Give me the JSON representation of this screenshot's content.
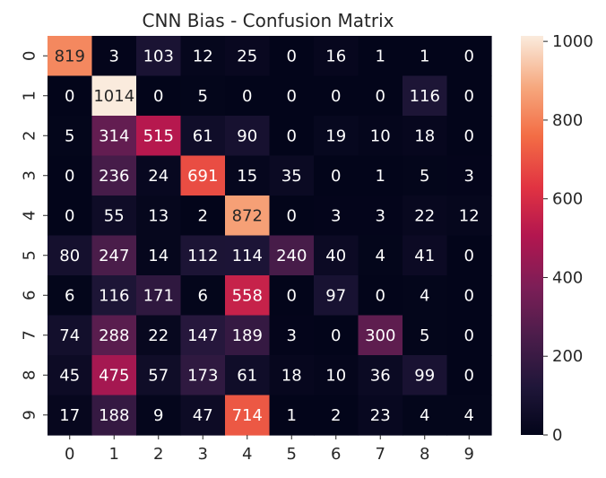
{
  "chart_data": {
    "type": "heatmap",
    "title": "CNN Bias - Confusion Matrix",
    "xlabel": "",
    "ylabel": "",
    "x_categories": [
      "0",
      "1",
      "2",
      "3",
      "4",
      "5",
      "6",
      "7",
      "8",
      "9"
    ],
    "y_categories": [
      "0",
      "1",
      "2",
      "3",
      "4",
      "5",
      "6",
      "7",
      "8",
      "9"
    ],
    "values": [
      [
        819,
        3,
        103,
        12,
        25,
        0,
        16,
        1,
        1,
        0
      ],
      [
        0,
        1014,
        0,
        5,
        0,
        0,
        0,
        0,
        116,
        0
      ],
      [
        5,
        314,
        515,
        61,
        90,
        0,
        19,
        10,
        18,
        0
      ],
      [
        0,
        236,
        24,
        691,
        15,
        35,
        0,
        1,
        5,
        3
      ],
      [
        0,
        55,
        13,
        2,
        872,
        0,
        3,
        3,
        22,
        12
      ],
      [
        80,
        247,
        14,
        112,
        114,
        240,
        40,
        4,
        41,
        0
      ],
      [
        6,
        116,
        171,
        6,
        558,
        0,
        97,
        0,
        4,
        0
      ],
      [
        74,
        288,
        22,
        147,
        189,
        3,
        0,
        300,
        5,
        0
      ],
      [
        45,
        475,
        57,
        173,
        61,
        18,
        10,
        36,
        99,
        0
      ],
      [
        17,
        188,
        9,
        47,
        714,
        1,
        2,
        23,
        4,
        4
      ]
    ],
    "colorbar": {
      "range": [
        0,
        1014
      ],
      "ticks": [
        0,
        200,
        400,
        600,
        800,
        1000
      ],
      "colormap": "rocket"
    },
    "grid": false
  }
}
